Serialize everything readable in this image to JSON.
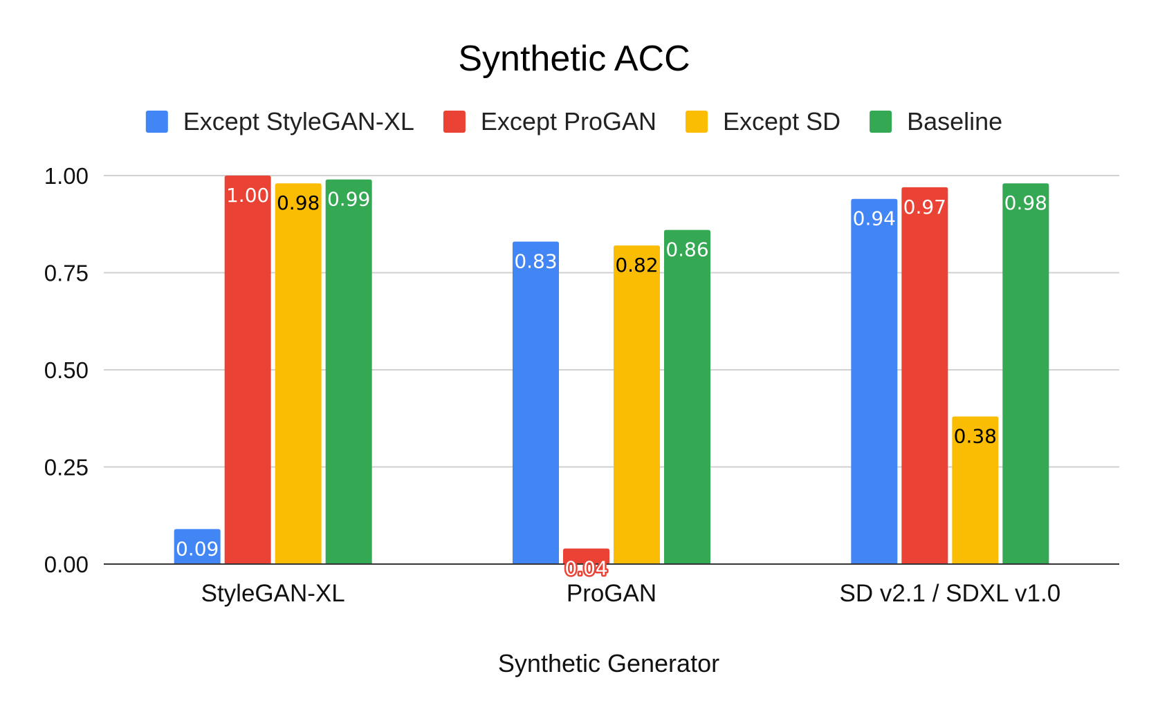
{
  "chart_data": {
    "type": "bar",
    "title": "Synthetic ACC",
    "xlabel": "Synthetic Generator",
    "ylabel": "",
    "ylim": [
      0,
      1
    ],
    "yticks": [
      "0.00",
      "0.25",
      "0.50",
      "0.75",
      "1.00"
    ],
    "grid": true,
    "legend_position": "top",
    "categories": [
      "StyleGAN-XL",
      "ProGAN",
      "SD v2.1 / SDXL v1.0"
    ],
    "series": [
      {
        "name": "Except StyleGAN-XL",
        "color": "#4285F4",
        "values": [
          0.09,
          0.83,
          0.94
        ],
        "labels": [
          "0.09",
          "0.83",
          "0.94"
        ],
        "label_color": "#ffffff"
      },
      {
        "name": "Except ProGAN",
        "color": "#EA4335",
        "values": [
          1.0,
          0.04,
          0.97
        ],
        "labels": [
          "1.00",
          "0.04",
          "0.97"
        ],
        "label_color": "#ffffff"
      },
      {
        "name": "Except SD",
        "color": "#FBBC04",
        "values": [
          0.98,
          0.82,
          0.38
        ],
        "labels": [
          "0.98",
          "0.82",
          "0.38"
        ],
        "label_color": "#000000"
      },
      {
        "name": "Baseline",
        "color": "#34A853",
        "values": [
          0.99,
          0.86,
          0.98
        ],
        "labels": [
          "0.99",
          "0.86",
          "0.98"
        ],
        "label_color": "#ffffff"
      }
    ]
  }
}
